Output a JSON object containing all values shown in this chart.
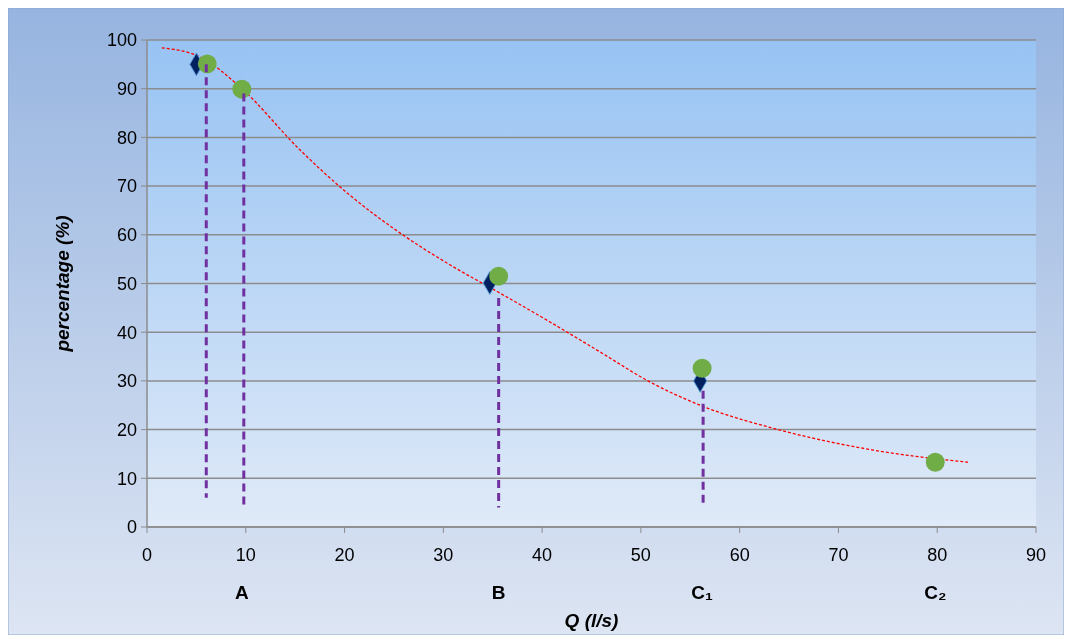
{
  "chart_data": {
    "type": "scatter",
    "xlabel": "Q (l/s)",
    "ylabel": "percentage (%)",
    "xlim": [
      0,
      90
    ],
    "xticks": [
      0,
      10,
      20,
      30,
      40,
      50,
      60,
      70,
      80,
      90
    ],
    "ylim": [
      0,
      100
    ],
    "yticks": [
      0,
      10,
      20,
      30,
      40,
      50,
      60,
      70,
      80,
      90,
      100
    ],
    "grid": "y",
    "series": [
      {
        "type": "line",
        "color": "#ff0000",
        "line_style": "dotted",
        "marker": "none",
        "x": [
          1.5,
          5.4,
          9.6,
          15.5,
          20.5,
          25.6,
          30.7,
          35.5,
          40.8,
          45.9,
          50.9,
          56,
          64.1,
          73.5,
          83.1
        ],
        "values": [
          98.4,
          96.5,
          90,
          77.4,
          68.2,
          60.4,
          53.8,
          48.3,
          42.1,
          35.9,
          29.8,
          25,
          19.9,
          15.8,
          13.3
        ]
      },
      {
        "color": "#002060",
        "marker": "diamond",
        "x": [
          5,
          34.7,
          56
        ],
        "values": [
          95,
          50.1,
          30
        ]
      },
      {
        "color": "#70ad47",
        "marker": "circle",
        "x": [
          6.1,
          9.6,
          35.6,
          56.2,
          79.8
        ],
        "values": [
          95.1,
          89.9,
          51.5,
          32.6,
          13.3
        ]
      },
      {
        "type": "line",
        "color": "#7030a0",
        "line_style": "dashed",
        "marker": "none",
        "x": [
          6,
          6
        ],
        "values": [
          95,
          6
        ]
      },
      {
        "type": "line",
        "color": "#7030a0",
        "line_style": "dashed",
        "marker": "none",
        "x": [
          9.8,
          9.8
        ],
        "values": [
          89,
          4
        ]
      },
      {
        "type": "line",
        "color": "#7030a0",
        "line_style": "dashed",
        "marker": "none",
        "x": [
          35.6,
          35.6
        ],
        "values": [
          47,
          4
        ]
      },
      {
        "type": "line",
        "color": "#7030a0",
        "line_style": "dashed",
        "marker": "none",
        "x": [
          56.3,
          56.3
        ],
        "values": [
          28,
          5
        ]
      }
    ],
    "annotations": [
      "A",
      "B",
      "C₁",
      "C₂"
    ]
  }
}
